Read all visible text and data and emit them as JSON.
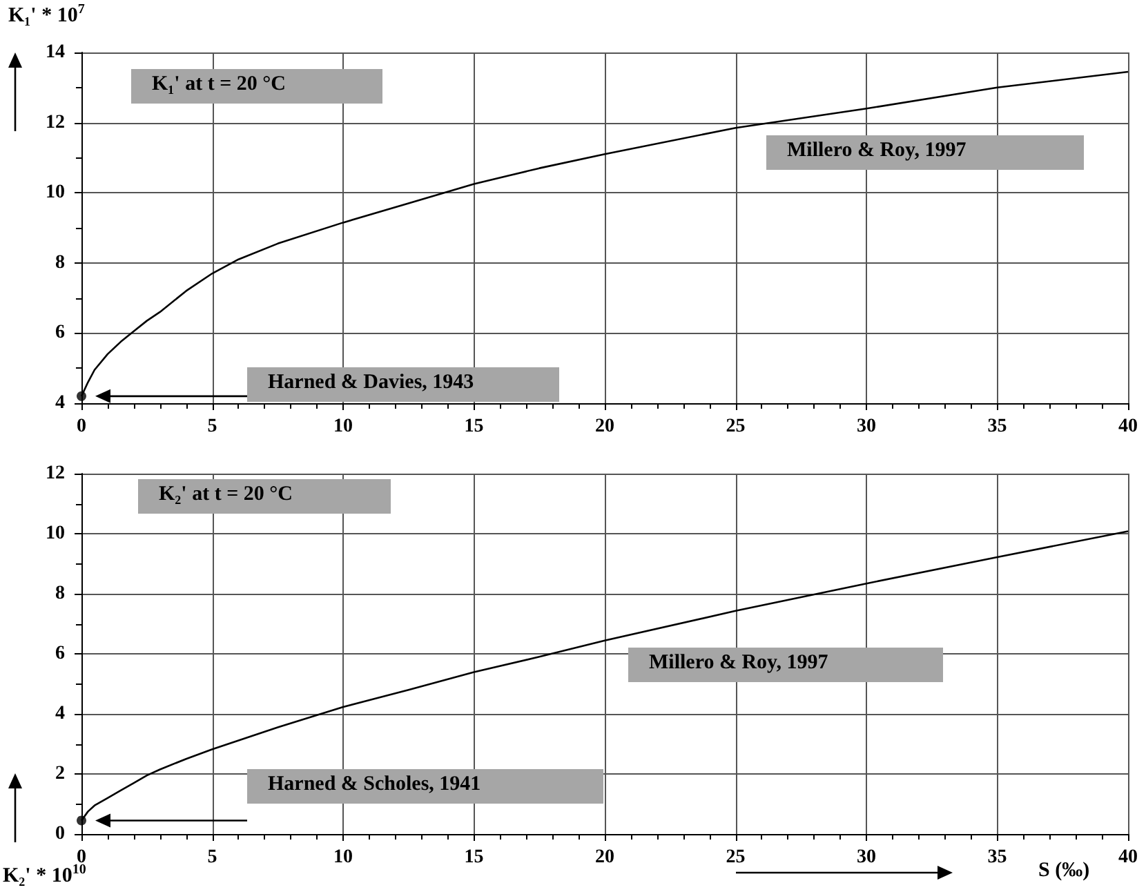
{
  "chart_data": [
    {
      "type": "line",
      "title": "K₁' at t = 20 °C",
      "ylabel": "K₁' * 10$^{7}$",
      "xlim": [
        0,
        40
      ],
      "xticks": [
        0,
        5,
        10,
        15,
        20,
        25,
        30,
        35,
        40
      ],
      "ylim": [
        4,
        14
      ],
      "yticks": [
        4,
        6,
        8,
        10,
        12,
        14
      ],
      "grid": true,
      "annotations": [
        "Harned & Davies, 1943"
      ],
      "series": [
        {
          "name": "Millero & Roy, 1997",
          "color": "#000000",
          "marker": "none",
          "x": [
            0,
            0.25,
            0.5,
            1,
            1.5,
            2,
            2.5,
            3,
            4,
            5,
            6,
            7.5,
            10,
            12.5,
            15,
            17.5,
            20,
            25,
            30,
            35,
            40
          ],
          "values": [
            4.2,
            4.6,
            4.95,
            5.4,
            5.75,
            6.05,
            6.35,
            6.6,
            7.2,
            7.7,
            8.1,
            8.55,
            9.15,
            9.7,
            10.25,
            10.7,
            11.1,
            11.85,
            12.4,
            13.0,
            13.45
          ]
        },
        {
          "type": "scatter",
          "color": "#000000",
          "marker": "circle",
          "x": [
            0
          ],
          "values": [
            4.2
          ]
        }
      ]
    },
    {
      "type": "line",
      "title": "K₂' at t = 20 °C",
      "ylabel": "K₂' * 10$^{10}$",
      "xlabel": "S (‰)",
      "xlim": [
        0,
        40
      ],
      "xticks": [
        0,
        5,
        10,
        15,
        20,
        25,
        30,
        35,
        40
      ],
      "ylim": [
        0,
        12
      ],
      "yticks": [
        0,
        2,
        4,
        6,
        8,
        10,
        12
      ],
      "grid": true,
      "annotations": [
        "Harned & Scholes, 1941"
      ],
      "series": [
        {
          "name": "Millero & Roy, 1997",
          "color": "#000000",
          "marker": "none",
          "x": [
            0,
            0.25,
            0.5,
            1,
            1.5,
            2,
            2.5,
            3,
            4,
            5,
            7.5,
            10,
            12.5,
            15,
            17.5,
            20,
            25,
            30,
            35,
            40
          ],
          "values": [
            0.45,
            0.75,
            0.95,
            1.2,
            1.45,
            1.7,
            1.95,
            2.15,
            2.5,
            2.82,
            3.55,
            4.23,
            4.8,
            5.39,
            5.9,
            6.44,
            7.43,
            8.34,
            9.22,
            10.08
          ]
        },
        {
          "type": "scatter",
          "color": "#000000",
          "marker": "circle",
          "x": [
            0
          ],
          "values": [
            0.45
          ]
        }
      ]
    }
  ]
}
